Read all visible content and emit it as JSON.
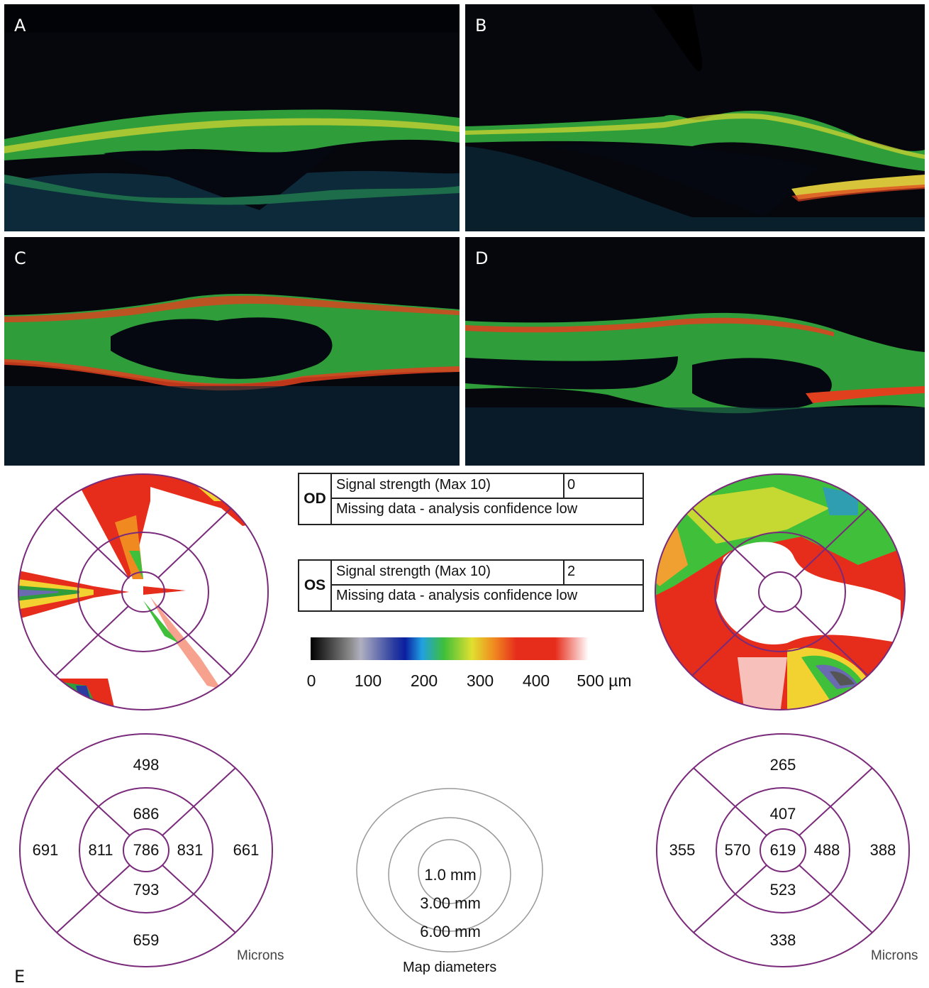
{
  "panels": [
    {
      "label": "A"
    },
    {
      "label": "B"
    },
    {
      "label": "C"
    },
    {
      "label": "D"
    }
  ],
  "figure_label": "E",
  "od_box": {
    "eye": "OD",
    "signal_label": "Signal strength (Max 10)",
    "signal_value": "0",
    "note": "Missing data - analysis confidence low"
  },
  "os_box": {
    "eye": "OS",
    "signal_label": "Signal strength (Max 10)",
    "signal_value": "2",
    "note": "Missing data - analysis confidence low"
  },
  "color_scale": {
    "ticks": [
      "0",
      "100",
      "200",
      "300",
      "400",
      "500 µm"
    ]
  },
  "od_grid": {
    "outer_superior": "498",
    "inner_superior": "686",
    "outer_temporal": "691",
    "inner_temporal": "811",
    "center": "786",
    "inner_nasal": "831",
    "outer_nasal": "661",
    "inner_inferior": "793",
    "outer_inferior": "659",
    "units": "Microns"
  },
  "os_grid": {
    "outer_superior": "265",
    "inner_superior": "407",
    "outer_temporal": "355",
    "inner_temporal": "570",
    "center": "619",
    "inner_nasal": "488",
    "outer_nasal": "388",
    "inner_inferior": "523",
    "outer_inferior": "338",
    "units": "Microns"
  },
  "map_diameters": {
    "inner": "1.0 mm",
    "middle": "3.00 mm",
    "outer": "6.00 mm",
    "caption": "Map diameters"
  },
  "colors": {
    "grid_line": "#7a2a7a",
    "scan_bg": "#05070d",
    "retina_green": "#3fbf3a",
    "retina_yellow": "#d8d63a",
    "retina_red": "#e0401e"
  }
}
